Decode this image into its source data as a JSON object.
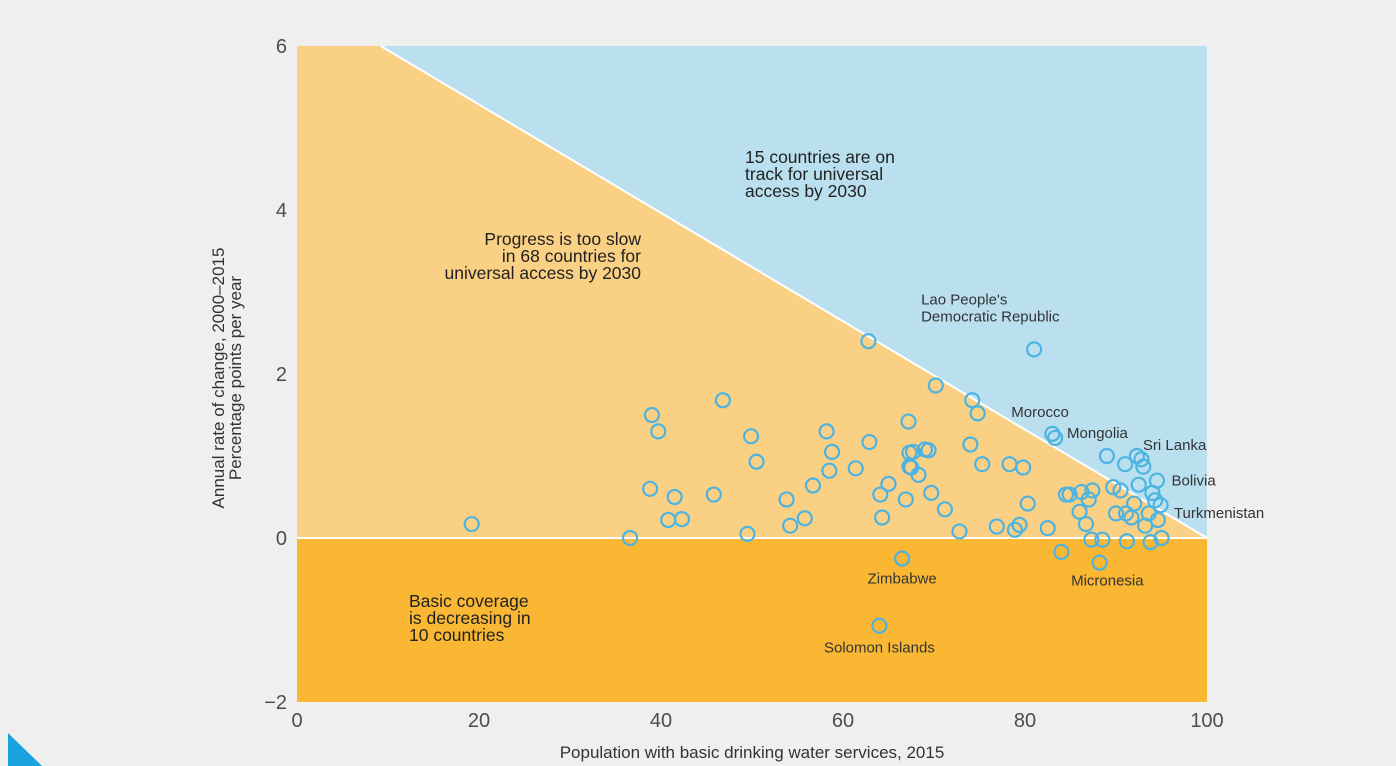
{
  "colors": {
    "background": "#efefef",
    "on_track": "#bae0f0",
    "too_slow": "#fad084",
    "decreasing": "#f9b733",
    "point_stroke": "#4db3e1",
    "accent_corner": "#1aa3dd"
  },
  "chart_data": {
    "type": "scatter",
    "title": "",
    "xlabel": "Population with basic drinking water services, 2015",
    "ylabel_lines": [
      "Annual rate of change, 2000–2015",
      "Percentage points per year"
    ],
    "xlim": [
      0,
      100
    ],
    "ylim": [
      -2,
      6
    ],
    "x_ticks": [
      "0",
      "20",
      "40",
      "60",
      "80",
      "100"
    ],
    "y_ticks": [
      "−2",
      "0",
      "2",
      "4",
      "6"
    ],
    "grid": false,
    "regions": [
      {
        "name": "on_track",
        "text_lines": [
          "15 countries are on",
          "track for universal",
          "access by 2030"
        ]
      },
      {
        "name": "too_slow",
        "text_lines": [
          "Progress is too slow",
          "in 68 countries for",
          "universal access by 2030"
        ]
      },
      {
        "name": "decreasing",
        "text_lines": [
          "Basic coverage",
          "is decreasing in",
          "10 countries"
        ]
      }
    ],
    "labeled_points": [
      {
        "name_lines": [
          "Lao People's",
          "Democratic Republic"
        ],
        "x": 81,
        "y": 2.3
      },
      {
        "name_lines": [
          "Morocco"
        ],
        "x": 83,
        "y": 1.27
      },
      {
        "name_lines": [
          "Mongolia"
        ],
        "x": 83.3,
        "y": 1.22
      },
      {
        "name_lines": [
          "Sri Lanka"
        ],
        "x": 92.3,
        "y": 1.0
      },
      {
        "name_lines": [
          "Bolivia"
        ],
        "x": 95,
        "y": 0.7
      },
      {
        "name_lines": [
          "Turkmenistan"
        ],
        "x": 94.5,
        "y": 0.4
      },
      {
        "name_lines": [
          "Zimbabwe"
        ],
        "x": 66.5,
        "y": -0.25
      },
      {
        "name_lines": [
          "Micronesia"
        ],
        "x": 88.5,
        "y": -0.3
      },
      {
        "name_lines": [
          "Solomon Islands"
        ],
        "x": 64,
        "y": -1.07
      }
    ],
    "points": [
      [
        19.2,
        0.17
      ],
      [
        36.6,
        0.0
      ],
      [
        38.8,
        0.6
      ],
      [
        39,
        1.5
      ],
      [
        39.7,
        1.3
      ],
      [
        40.8,
        0.22
      ],
      [
        41.5,
        0.5
      ],
      [
        42.3,
        0.23
      ],
      [
        45.8,
        0.53
      ],
      [
        46.8,
        1.68
      ],
      [
        49.5,
        0.05
      ],
      [
        49.9,
        1.24
      ],
      [
        50.5,
        0.93
      ],
      [
        53.8,
        0.47
      ],
      [
        54.2,
        0.15
      ],
      [
        55.8,
        0.24
      ],
      [
        56.7,
        0.64
      ],
      [
        58.2,
        1.3
      ],
      [
        58.5,
        0.82
      ],
      [
        58.8,
        1.05
      ],
      [
        61.4,
        0.85
      ],
      [
        62.8,
        2.4
      ],
      [
        62.9,
        1.17
      ],
      [
        64,
        -1.07
      ],
      [
        64.1,
        0.53
      ],
      [
        64.3,
        0.25
      ],
      [
        65,
        0.66
      ],
      [
        66.5,
        -0.25
      ],
      [
        66.9,
        0.47
      ],
      [
        67.2,
        1.42
      ],
      [
        67.3,
        1.04
      ],
      [
        67.3,
        0.87
      ],
      [
        67.5,
        0.86
      ],
      [
        67.7,
        1.05
      ],
      [
        68.3,
        0.77
      ],
      [
        69,
        1.08
      ],
      [
        69.4,
        1.07
      ],
      [
        69.7,
        0.55
      ],
      [
        70.2,
        1.86
      ],
      [
        71.2,
        0.35
      ],
      [
        72.8,
        0.08
      ],
      [
        74.0,
        1.14
      ],
      [
        74.2,
        1.68
      ],
      [
        74.8,
        1.52
      ],
      [
        75.3,
        0.9
      ],
      [
        76.9,
        0.14
      ],
      [
        78.3,
        0.9
      ],
      [
        78.9,
        0.1
      ],
      [
        79.4,
        0.16
      ],
      [
        79.8,
        0.86
      ],
      [
        80.3,
        0.42
      ],
      [
        81,
        2.3
      ],
      [
        82.5,
        0.12
      ],
      [
        83,
        1.27
      ],
      [
        83.3,
        1.22
      ],
      [
        84,
        -0.17
      ],
      [
        84.5,
        0.53
      ],
      [
        84.9,
        0.53
      ],
      [
        86,
        0.32
      ],
      [
        86.2,
        0.56
      ],
      [
        86.7,
        0.17
      ],
      [
        87.0,
        0.47
      ],
      [
        87.3,
        -0.02
      ],
      [
        87.4,
        0.58
      ],
      [
        88.2,
        -0.3
      ],
      [
        88.5,
        -0.02
      ],
      [
        89,
        1.0
      ],
      [
        89.7,
        0.62
      ],
      [
        90,
        0.3
      ],
      [
        90.5,
        0.58
      ],
      [
        91,
        0.9
      ],
      [
        91.1,
        0.3
      ],
      [
        91.2,
        -0.04
      ],
      [
        91.7,
        0.25
      ],
      [
        92.0,
        0.42
      ],
      [
        92.3,
        1.0
      ],
      [
        92.5,
        0.65
      ],
      [
        92.8,
        0.96
      ],
      [
        93,
        0.87
      ],
      [
        93.2,
        0.15
      ],
      [
        93.6,
        0.3
      ],
      [
        93.8,
        -0.05
      ],
      [
        94.0,
        0.55
      ],
      [
        94.3,
        0.46
      ],
      [
        94.5,
        0.7
      ],
      [
        94.6,
        0.22
      ],
      [
        94.9,
        0.4
      ],
      [
        95,
        0.0
      ]
    ]
  }
}
